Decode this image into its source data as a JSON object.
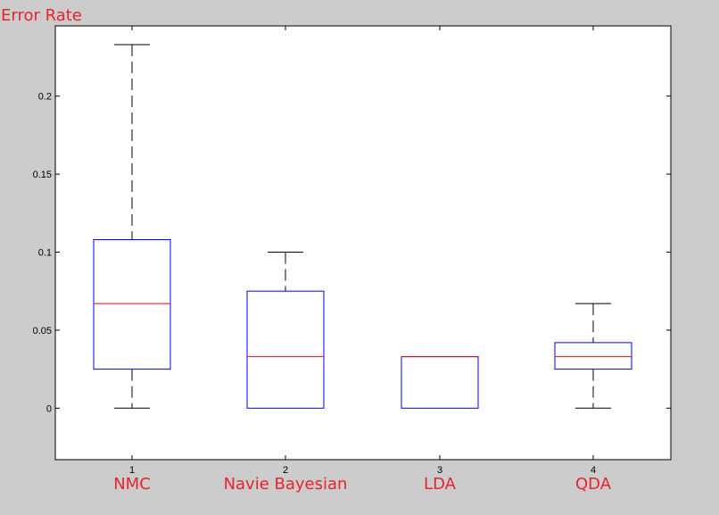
{
  "annotation_title": "Error Rate",
  "chart_data": {
    "type": "box",
    "title": "",
    "xlabel": "",
    "ylabel": "",
    "categories": [
      "1",
      "2",
      "3",
      "4"
    ],
    "category_annotations": [
      "NMC",
      "Navie Bayesian",
      "LDA",
      "QDA"
    ],
    "ylim": [
      -0.033,
      0.245
    ],
    "yticks": [
      0,
      0.05,
      0.1,
      0.15,
      0.2
    ],
    "ytick_labels": [
      "0",
      "0.05",
      "0.1",
      "0.15",
      "0.2"
    ],
    "grid": false,
    "boxes": [
      {
        "category": "1",
        "whisker_low": 0,
        "q1": 0.025,
        "median": 0.067,
        "q3": 0.108,
        "whisker_high": 0.233
      },
      {
        "category": "2",
        "whisker_low": 0,
        "q1": 0,
        "median": 0.033,
        "q3": 0.075,
        "whisker_high": 0.1
      },
      {
        "category": "3",
        "whisker_low": 0,
        "q1": 0,
        "median": 0.033,
        "q3": 0.033,
        "whisker_high": 0.033
      },
      {
        "category": "4",
        "whisker_low": 0,
        "q1": 0.025,
        "median": 0.033,
        "q3": 0.042,
        "whisker_high": 0.067
      }
    ],
    "colors": {
      "box": "#0000ff",
      "median": "#ff0000",
      "whisker": "#000000",
      "annotation": "#e8232f"
    }
  }
}
